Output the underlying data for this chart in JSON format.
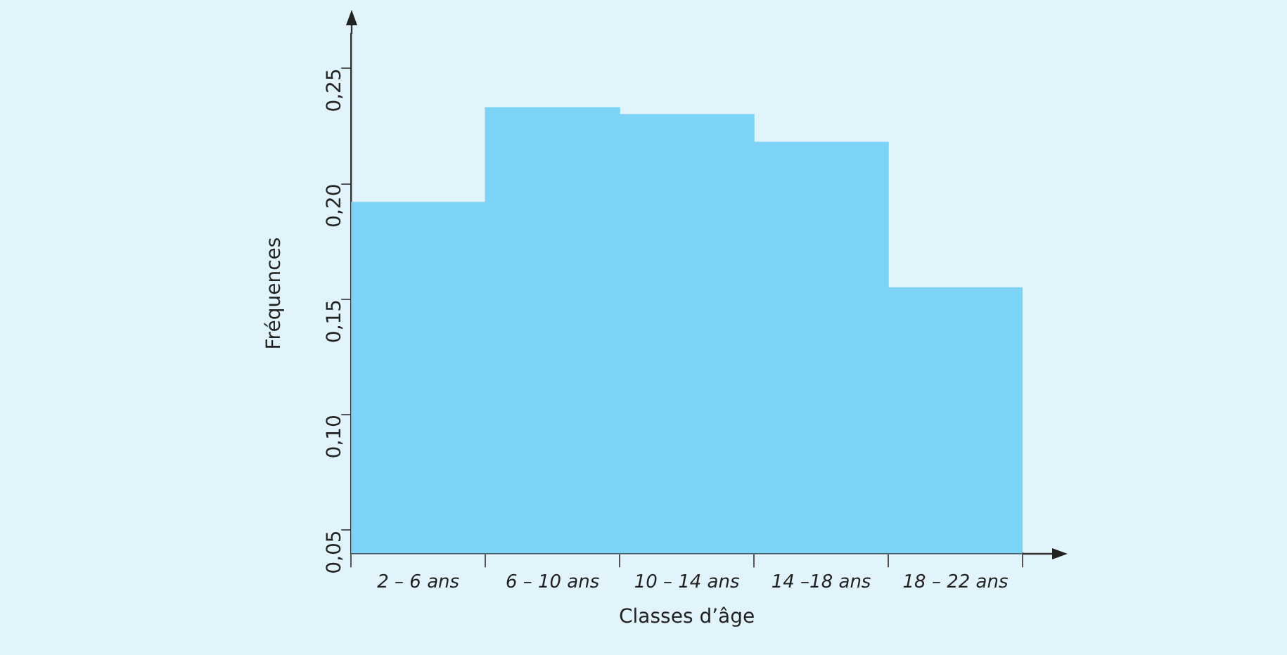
{
  "chart_data": {
    "type": "bar",
    "xlabel": "Classes d’âge",
    "ylabel": "Fréquences",
    "categories": [
      "2 – 6 ans",
      "6 – 10 ans",
      "10 – 14 ans",
      "14 –18 ans",
      "18 – 22 ans"
    ],
    "values": [
      0.192,
      0.233,
      0.23,
      0.218,
      0.155
    ],
    "color": "#7dd3f5",
    "ylim": [
      0.04,
      0.265
    ],
    "yticks": [
      {
        "value": 0.05,
        "label": "0,05"
      },
      {
        "value": 0.1,
        "label": "0,10"
      },
      {
        "value": 0.15,
        "label": "0,15"
      },
      {
        "value": 0.2,
        "label": "0,20"
      },
      {
        "value": 0.25,
        "label": "0,25"
      }
    ],
    "grid": false,
    "legend": false
  }
}
